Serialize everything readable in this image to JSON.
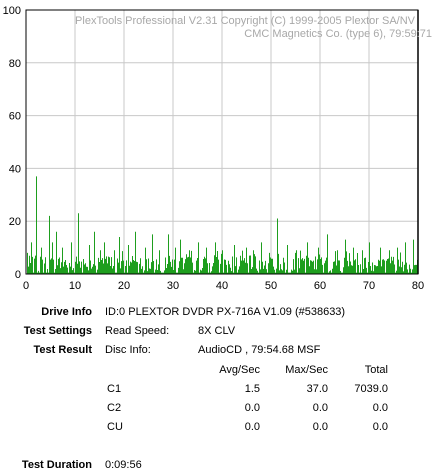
{
  "chart_data": {
    "type": "bar",
    "watermark": [
      "PlexTools Professional V2.31 Copyright (C) 1999-2005 Plextor SA/NV",
      "CMC Magnetics Co. (type 6), 79:59:71"
    ],
    "xlim": [
      0,
      80
    ],
    "ylim": [
      0,
      100
    ],
    "x_ticks": [
      0,
      10,
      20,
      30,
      40,
      50,
      60,
      70,
      80
    ],
    "y_ticks": [
      0,
      20,
      40,
      60,
      80,
      100
    ],
    "grid": true,
    "marker_x": 80,
    "series": [
      {
        "color": "#1e9e1e",
        "peaks": [
          {
            "x": 0.3,
            "y": 8
          },
          {
            "x": 1.1,
            "y": 12
          },
          {
            "x": 2.1,
            "y": 37
          },
          {
            "x": 3.0,
            "y": 10
          },
          {
            "x": 4.6,
            "y": 22
          },
          {
            "x": 5.3,
            "y": 12
          },
          {
            "x": 6.2,
            "y": 16
          },
          {
            "x": 7.4,
            "y": 10
          },
          {
            "x": 9.1,
            "y": 12
          },
          {
            "x": 10.7,
            "y": 23
          },
          {
            "x": 12.8,
            "y": 11
          },
          {
            "x": 13.9,
            "y": 16
          },
          {
            "x": 15.2,
            "y": 9
          },
          {
            "x": 16.0,
            "y": 12
          },
          {
            "x": 18.0,
            "y": 9
          },
          {
            "x": 19.0,
            "y": 14
          },
          {
            "x": 20.9,
            "y": 11
          },
          {
            "x": 22.2,
            "y": 16
          },
          {
            "x": 24.2,
            "y": 10
          },
          {
            "x": 25.7,
            "y": 15
          },
          {
            "x": 27.1,
            "y": 9
          },
          {
            "x": 29.0,
            "y": 15
          },
          {
            "x": 30.5,
            "y": 10
          },
          {
            "x": 31.4,
            "y": 13
          },
          {
            "x": 33.2,
            "y": 9
          },
          {
            "x": 35.0,
            "y": 12
          },
          {
            "x": 36.8,
            "y": 10
          },
          {
            "x": 38.6,
            "y": 12
          },
          {
            "x": 40.1,
            "y": 9
          },
          {
            "x": 42.5,
            "y": 11
          },
          {
            "x": 44.9,
            "y": 10
          },
          {
            "x": 46.4,
            "y": 9
          },
          {
            "x": 48.0,
            "y": 12
          },
          {
            "x": 49.5,
            "y": 8
          },
          {
            "x": 51.3,
            "y": 21
          },
          {
            "x": 53.2,
            "y": 11
          },
          {
            "x": 55.1,
            "y": 9
          },
          {
            "x": 57.3,
            "y": 12
          },
          {
            "x": 59.6,
            "y": 10
          },
          {
            "x": 61.4,
            "y": 15
          },
          {
            "x": 63.4,
            "y": 9
          },
          {
            "x": 65.0,
            "y": 13
          },
          {
            "x": 66.8,
            "y": 10
          },
          {
            "x": 68.5,
            "y": 9
          },
          {
            "x": 70.1,
            "y": 12
          },
          {
            "x": 72.2,
            "y": 10
          },
          {
            "x": 74.0,
            "y": 9
          },
          {
            "x": 75.8,
            "y": 10
          },
          {
            "x": 77.3,
            "y": 12
          },
          {
            "x": 78.9,
            "y": 13
          }
        ],
        "typical_level": 5
      }
    ]
  },
  "drive": {
    "label": "Drive Info",
    "value": "ID:0 PLEXTOR DVDR PX-716A V1.09 (#538633)"
  },
  "settings": {
    "label": "Test Settings",
    "key": "Read Speed:",
    "value": "8X CLV"
  },
  "result": {
    "label": "Test Result",
    "key": "Disc Info:",
    "value": "AudioCD , 79:54.68 MSF"
  },
  "stats": {
    "headers": [
      "Avg/Sec",
      "Max/Sec",
      "Total"
    ],
    "rows": [
      {
        "name": "C1",
        "avg": "1.5",
        "max": "37.0",
        "total": "7039.0"
      },
      {
        "name": "C2",
        "avg": "0.0",
        "max": "0.0",
        "total": "0.0"
      },
      {
        "name": "CU",
        "avg": "0.0",
        "max": "0.0",
        "total": "0.0"
      }
    ]
  },
  "duration": {
    "label": "Test Duration",
    "value": "0:09:56"
  }
}
